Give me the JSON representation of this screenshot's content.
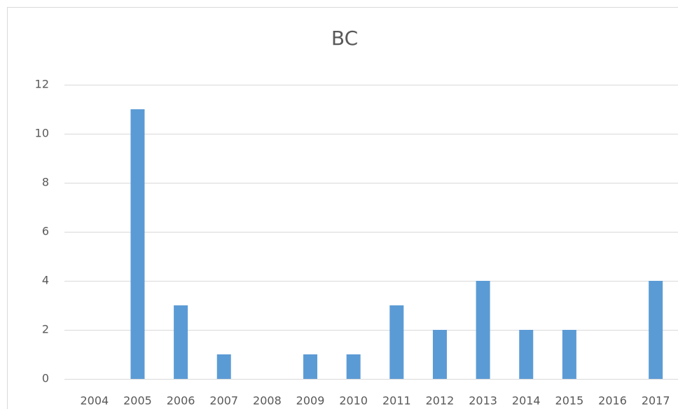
{
  "chart_data": {
    "type": "bar",
    "title": "BC",
    "categories": [
      "2004",
      "2005",
      "2006",
      "2007",
      "2008",
      "2009",
      "2010",
      "2011",
      "2012",
      "2013",
      "2014",
      "2015",
      "2016",
      "2017"
    ],
    "values": [
      0,
      11,
      3,
      1,
      0,
      1,
      1,
      3,
      2,
      4,
      2,
      2,
      0,
      4
    ],
    "color": "#5b9bd5",
    "ylim": [
      0,
      12
    ],
    "yticks": [
      0,
      2,
      4,
      6,
      8,
      10,
      12
    ],
    "grid": true
  }
}
